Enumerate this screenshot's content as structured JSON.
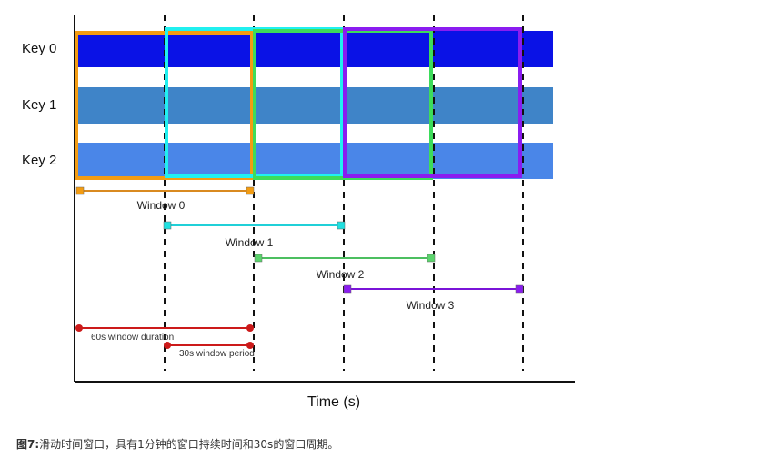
{
  "diagram": {
    "keys": [
      {
        "label": "Key 0",
        "color": "#0a12e6"
      },
      {
        "label": "Key 1",
        "color": "#3f84c8"
      },
      {
        "label": "Key 2",
        "color": "#4a86e8"
      }
    ],
    "windows": [
      {
        "label": "Window 0",
        "color": "#f39c12",
        "marker_color": "#f39c12",
        "line_color": "#d98a20"
      },
      {
        "label": "Window 1",
        "color": "#20f0f0",
        "marker_color": "#20e0e0",
        "line_color": "#20d0d8"
      },
      {
        "label": "Window 2",
        "color": "#3ddc5a",
        "marker_color": "#5ad46c",
        "line_color": "#4cbf60"
      },
      {
        "label": "Window 3",
        "color": "#8a1cf0",
        "marker_color": "#8a1cf0",
        "line_color": "#7a14d8"
      }
    ],
    "annotations": {
      "duration": {
        "label": "60s window duration",
        "color": "#cc1a1a"
      },
      "period": {
        "label": "30s window period",
        "color": "#cc1a1a"
      }
    },
    "xlabel": "Time (s)",
    "axis_color": "#111111"
  },
  "caption": {
    "prefix": "图7:",
    "text": "滑动时间窗口，具有1分钟的窗口持续时间和30s的窗口周期。"
  }
}
